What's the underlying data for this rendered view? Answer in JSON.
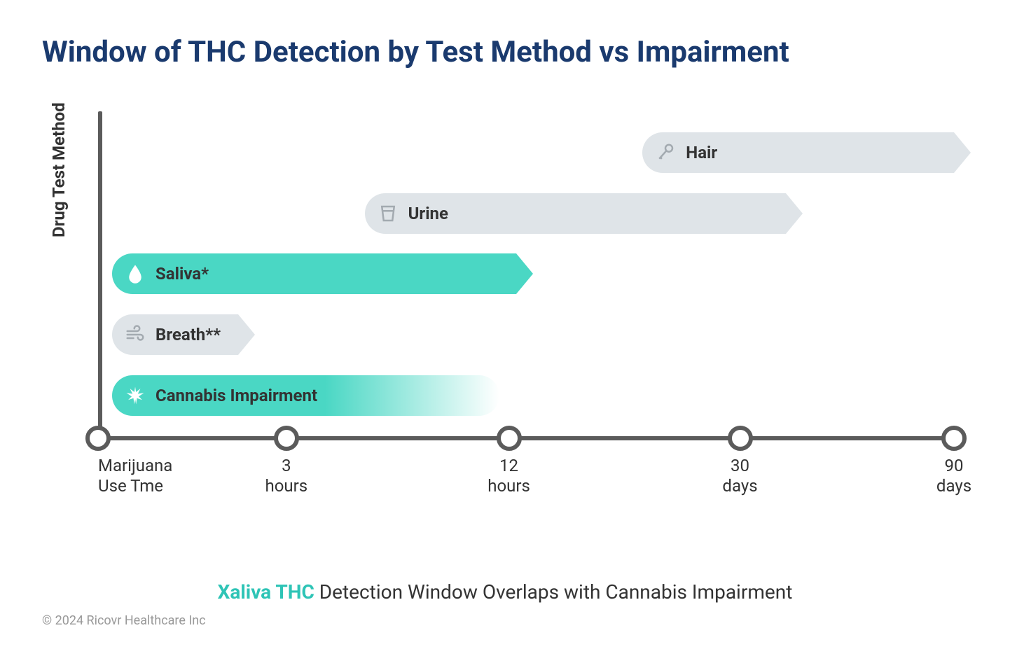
{
  "title": "Window of THC Detection by Test Method vs Impairment",
  "title_color": "#1a3a6e",
  "y_axis_label": "Drug Test Method",
  "colors": {
    "axis": "#5b5b5b",
    "gray_bar": "#dfe4e8",
    "teal_bar": "#4ad7c4",
    "teal_text": "#2ec4b6",
    "text_dark": "#333333",
    "bg": "#ffffff"
  },
  "x_axis": {
    "ticks": [
      {
        "pos_pct": 0,
        "label": "Marijuana\nUse Tme"
      },
      {
        "pos_pct": 22,
        "label": "3\nhours"
      },
      {
        "pos_pct": 48,
        "label": "12\nhours"
      },
      {
        "pos_pct": 75,
        "label": "30\ndays"
      },
      {
        "pos_pct": 100,
        "label": "90\ndays"
      }
    ]
  },
  "bars": [
    {
      "id": "hair",
      "label": "Hair",
      "icon": "microphone",
      "start_pct": 63,
      "end_pct": 100,
      "color": "#dfe4e8",
      "arrow": true,
      "fade": false,
      "icon_color": "#8a9299"
    },
    {
      "id": "urine",
      "label": "Urine",
      "icon": "cup",
      "start_pct": 30,
      "end_pct": 80,
      "color": "#dfe4e8",
      "arrow": true,
      "fade": false,
      "icon_color": "#8a9299"
    },
    {
      "id": "saliva",
      "label": "Saliva*",
      "icon": "drop",
      "start_pct": 0,
      "end_pct": 48,
      "color": "#4ad7c4",
      "arrow": true,
      "fade": false,
      "icon_color": "#ffffff"
    },
    {
      "id": "breath",
      "label": "Breath**",
      "icon": "wind",
      "start_pct": 0,
      "end_pct": 15,
      "color": "#dfe4e8",
      "arrow": true,
      "fade": false,
      "icon_color": "#8a9299"
    },
    {
      "id": "impair",
      "label": "Cannabis Impairment",
      "icon": "leaf",
      "start_pct": 0,
      "end_pct": 46,
      "color": "#4ad7c4",
      "arrow": false,
      "fade": true,
      "icon_color": "#ffffff"
    }
  ],
  "caption": {
    "brand": "Xaliva THC",
    "rest": " Detection Window Overlaps with Cannabis Impairment"
  },
  "copyright": "© 2024 Ricovr Healthcare Inc"
}
